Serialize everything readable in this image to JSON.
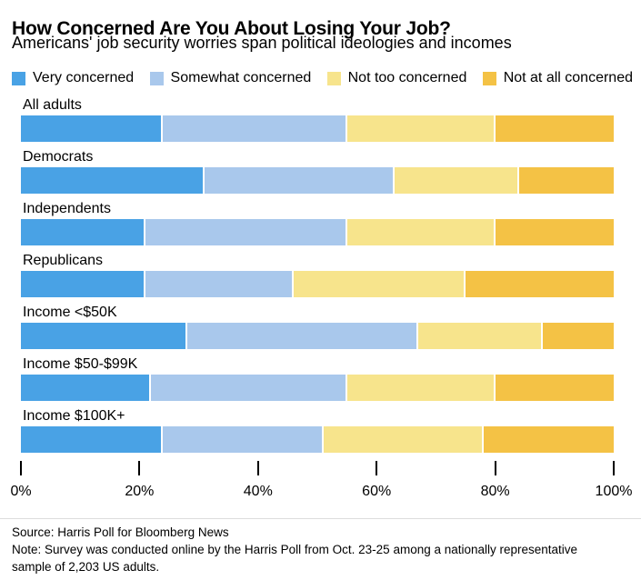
{
  "chart_data": {
    "type": "bar",
    "stacked": true,
    "orientation": "horizontal",
    "title": "How Concerned Are You About Losing Your Job?",
    "subtitle": "Americans' job security worries span political ideologies and incomes",
    "legend_position": "top",
    "grid": false,
    "categories": [
      "All adults",
      "Democrats",
      "Independents",
      "Republicans",
      "Income <$50K",
      "Income $50-$99K",
      "Income $100K+"
    ],
    "series": [
      {
        "name": "Very concerned",
        "color": "#49A2E5",
        "values": [
          24,
          31,
          21,
          21,
          28,
          22,
          24
        ]
      },
      {
        "name": "Somewhat concerned",
        "color": "#A9C8EC",
        "values": [
          31,
          32,
          34,
          25,
          39,
          33,
          27
        ]
      },
      {
        "name": "Not too concerned",
        "color": "#F7E48C",
        "values": [
          25,
          21,
          25,
          29,
          21,
          25,
          27
        ]
      },
      {
        "name": "Not at all concerned",
        "color": "#F4C245",
        "values": [
          20,
          16,
          20,
          25,
          12,
          20,
          22
        ]
      }
    ],
    "xlim": [
      0,
      100
    ],
    "x_ticks": [
      {
        "value": 0,
        "label": "0%"
      },
      {
        "value": 20,
        "label": "20%"
      },
      {
        "value": 40,
        "label": "40%"
      },
      {
        "value": 60,
        "label": "60%"
      },
      {
        "value": 80,
        "label": "80%"
      },
      {
        "value": 100,
        "label": "100%"
      }
    ]
  },
  "footer": {
    "source": "Source: Harris Poll for Bloomberg News",
    "note": "Note: Survey was conducted online by the Harris Poll from Oct. 23-25 among a nationally representative sample of 2,203 US adults."
  }
}
